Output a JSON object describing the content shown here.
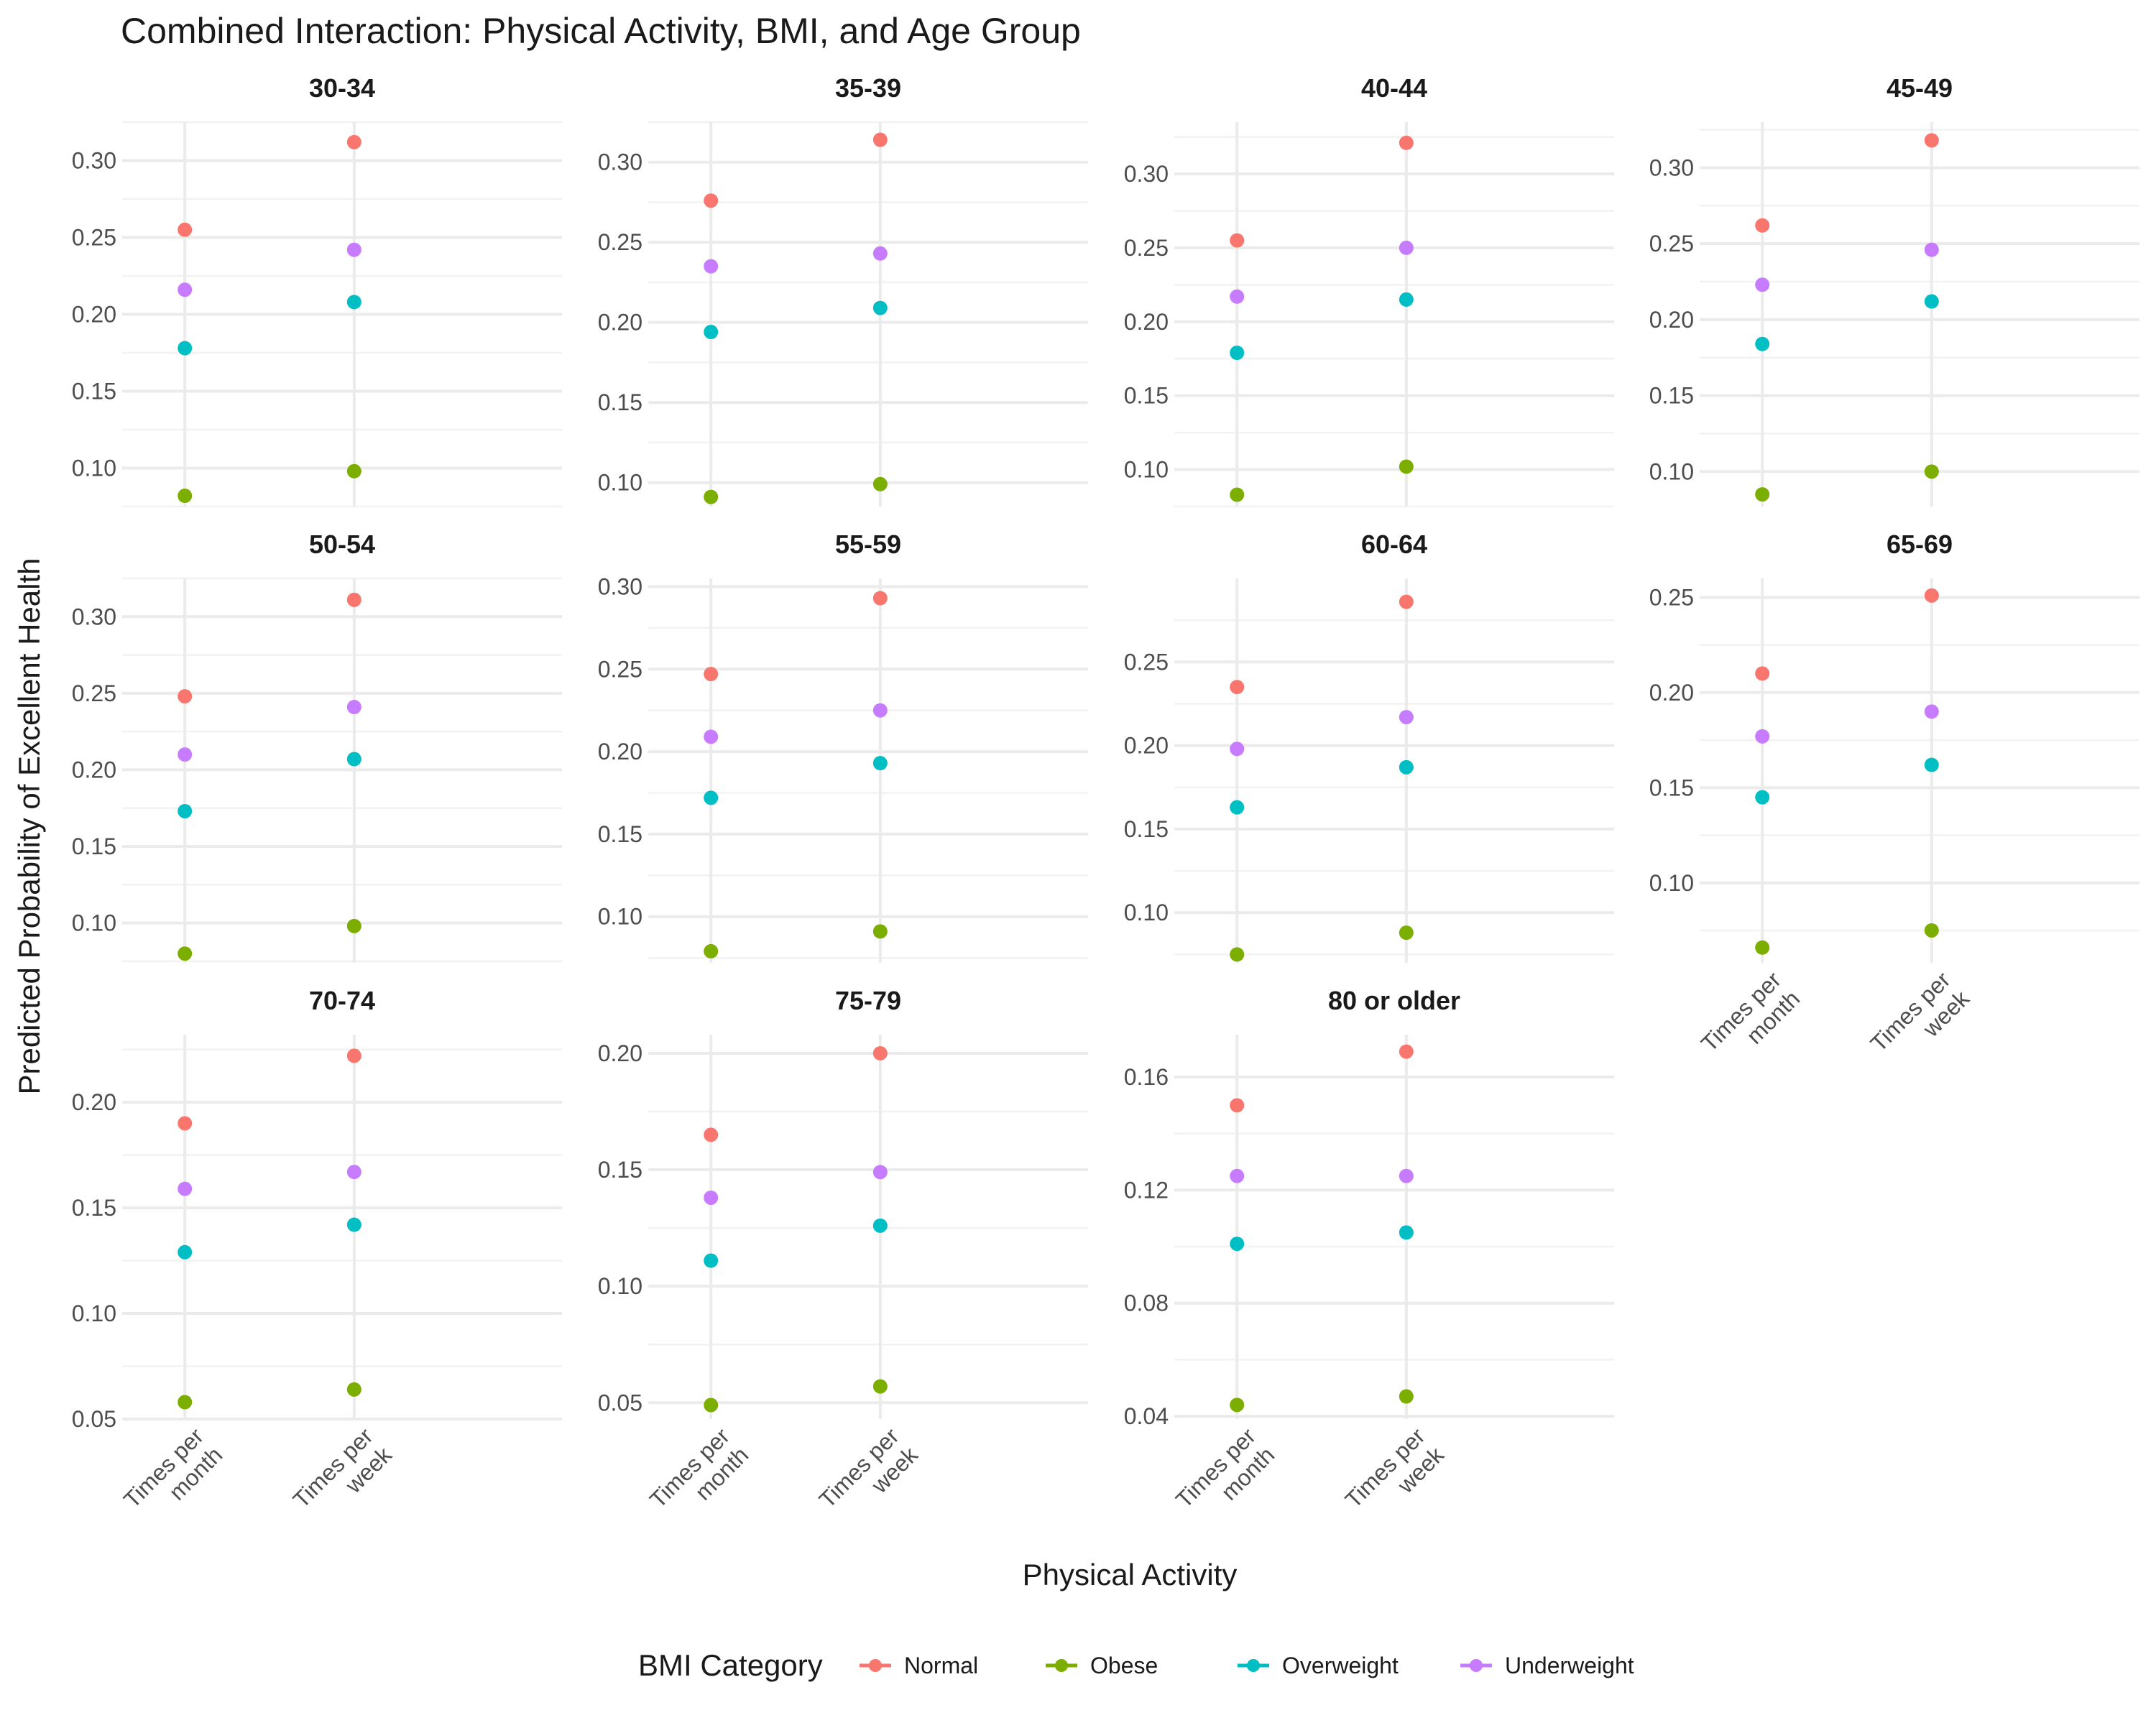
{
  "chart_data": {
    "type": "scatter",
    "title": "Combined Interaction: Physical Activity, BMI, and Age Group",
    "xlabel": "Physical Activity",
    "ylabel": "Predicted Probability of Excellent Health",
    "categories": [
      "Times per month",
      "Times per week"
    ],
    "category_lines": [
      [
        "Times per",
        "month"
      ],
      [
        "Times per",
        "week"
      ]
    ],
    "legend": {
      "title": "BMI Category",
      "position": "bottom",
      "items": [
        {
          "name": "Normal",
          "color": "#F8766D"
        },
        {
          "name": "Obese",
          "color": "#7CAE00"
        },
        {
          "name": "Overweight",
          "color": "#00BFC4"
        },
        {
          "name": "Underweight",
          "color": "#C77CFF"
        }
      ]
    },
    "grid": true,
    "facets": [
      {
        "label": "30-34",
        "ylim": [
          0.075,
          0.325
        ],
        "yticks": [
          "0.10",
          "0.15",
          "0.20",
          "0.25",
          "0.30"
        ],
        "series": {
          "Normal": [
            0.255,
            0.312
          ],
          "Obese": [
            0.082,
            0.098
          ],
          "Overweight": [
            0.178,
            0.208
          ],
          "Underweight": [
            0.216,
            0.242
          ]
        }
      },
      {
        "label": "35-39",
        "ylim": [
          0.085,
          0.325
        ],
        "yticks": [
          "0.10",
          "0.15",
          "0.20",
          "0.25",
          "0.30"
        ],
        "series": {
          "Normal": [
            0.276,
            0.314
          ],
          "Obese": [
            0.091,
            0.099
          ],
          "Overweight": [
            0.194,
            0.209
          ],
          "Underweight": [
            0.235,
            0.243
          ]
        }
      },
      {
        "label": "40-44",
        "ylim": [
          0.075,
          0.335
        ],
        "yticks": [
          "0.10",
          "0.15",
          "0.20",
          "0.25",
          "0.30"
        ],
        "series": {
          "Normal": [
            0.255,
            0.321
          ],
          "Obese": [
            0.083,
            0.102
          ],
          "Overweight": [
            0.179,
            0.215
          ],
          "Underweight": [
            0.217,
            0.25
          ]
        }
      },
      {
        "label": "45-49",
        "ylim": [
          0.077,
          0.33
        ],
        "yticks": [
          "0.10",
          "0.15",
          "0.20",
          "0.25",
          "0.30"
        ],
        "series": {
          "Normal": [
            0.262,
            0.318
          ],
          "Obese": [
            0.085,
            0.1
          ],
          "Overweight": [
            0.184,
            0.212
          ],
          "Underweight": [
            0.223,
            0.246
          ]
        }
      },
      {
        "label": "50-54",
        "ylim": [
          0.074,
          0.325
        ],
        "yticks": [
          "0.10",
          "0.15",
          "0.20",
          "0.25",
          "0.30"
        ],
        "series": {
          "Normal": [
            0.248,
            0.311
          ],
          "Obese": [
            0.08,
            0.098
          ],
          "Overweight": [
            0.173,
            0.207
          ],
          "Underweight": [
            0.21,
            0.241
          ]
        }
      },
      {
        "label": "55-59",
        "ylim": [
          0.072,
          0.305
        ],
        "yticks": [
          "0.10",
          "0.15",
          "0.20",
          "0.25",
          "0.30"
        ],
        "series": {
          "Normal": [
            0.247,
            0.293
          ],
          "Obese": [
            0.079,
            0.091
          ],
          "Overweight": [
            0.172,
            0.193
          ],
          "Underweight": [
            0.209,
            0.225
          ]
        }
      },
      {
        "label": "60-64",
        "ylim": [
          0.07,
          0.3
        ],
        "yticks": [
          "0.10",
          "0.15",
          "0.20",
          "0.25"
        ],
        "series": {
          "Normal": [
            0.235,
            0.286
          ],
          "Obese": [
            0.075,
            0.088
          ],
          "Overweight": [
            0.163,
            0.187
          ],
          "Underweight": [
            0.198,
            0.217
          ]
        }
      },
      {
        "label": "65-69",
        "ylim": [
          0.058,
          0.26
        ],
        "yticks": [
          "0.10",
          "0.15",
          "0.20",
          "0.25"
        ],
        "series": {
          "Normal": [
            0.21,
            0.251
          ],
          "Obese": [
            0.066,
            0.075
          ],
          "Overweight": [
            0.145,
            0.162
          ],
          "Underweight": [
            0.177,
            0.19
          ]
        }
      },
      {
        "label": "70-74",
        "ylim": [
          0.05,
          0.232
        ],
        "yticks": [
          "0.05",
          "0.10",
          "0.15",
          "0.20"
        ],
        "series": {
          "Normal": [
            0.19,
            0.222
          ],
          "Obese": [
            0.058,
            0.064
          ],
          "Overweight": [
            0.129,
            0.142
          ],
          "Underweight": [
            0.159,
            0.167
          ]
        }
      },
      {
        "label": "75-79",
        "ylim": [
          0.043,
          0.208
        ],
        "yticks": [
          "0.05",
          "0.10",
          "0.15",
          "0.20"
        ],
        "series": {
          "Normal": [
            0.165,
            0.2
          ],
          "Obese": [
            0.049,
            0.057
          ],
          "Overweight": [
            0.111,
            0.126
          ],
          "Underweight": [
            0.138,
            0.149
          ]
        }
      },
      {
        "label": "80 or older",
        "ylim": [
          0.039,
          0.175
        ],
        "yticks": [
          "0.04",
          "0.08",
          "0.12",
          "0.16"
        ],
        "series": {
          "Normal": [
            0.15,
            0.169
          ],
          "Obese": [
            0.044,
            0.047
          ],
          "Overweight": [
            0.101,
            0.105
          ],
          "Underweight": [
            0.125,
            0.125
          ]
        }
      }
    ]
  }
}
